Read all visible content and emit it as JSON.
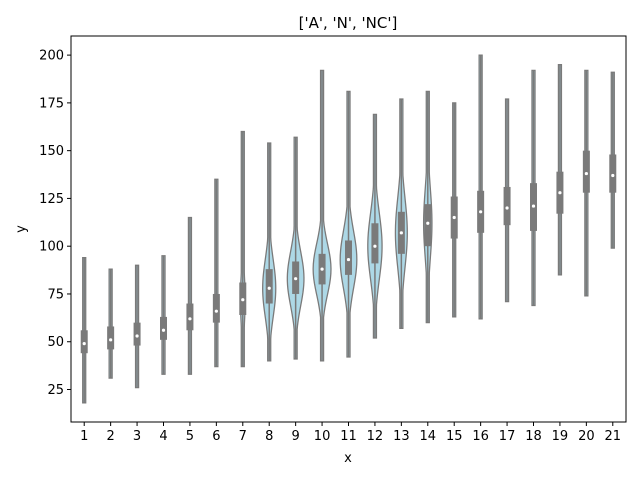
{
  "chart_data": {
    "type": "violin",
    "title": "['A', 'N', 'NC']",
    "xlabel": "x",
    "ylabel": "y",
    "ylim": [
      8,
      210
    ],
    "yticks": [
      25,
      50,
      75,
      100,
      125,
      150,
      175,
      200
    ],
    "grid": false,
    "colors": {
      "violin_fill": "#add8e6",
      "violin_edge": "#7a7a7a",
      "box": "#7a7a7a",
      "median": "#ffffff"
    },
    "categories": [
      "1",
      "2",
      "3",
      "4",
      "5",
      "6",
      "7",
      "8",
      "9",
      "10",
      "11",
      "12",
      "13",
      "14",
      "15",
      "16",
      "17",
      "18",
      "19",
      "20",
      "21"
    ],
    "violins": [
      {
        "x": "1",
        "min": 18,
        "q1": 44,
        "median": 49,
        "q3": 56,
        "max": 94,
        "width": 0.02
      },
      {
        "x": "2",
        "min": 31,
        "q1": 46,
        "median": 51,
        "q3": 58,
        "max": 88,
        "width": 0.02
      },
      {
        "x": "3",
        "min": 26,
        "q1": 48,
        "median": 53,
        "q3": 60,
        "max": 90,
        "width": 0.02
      },
      {
        "x": "4",
        "min": 33,
        "q1": 51,
        "median": 56,
        "q3": 63,
        "max": 95,
        "width": 0.02
      },
      {
        "x": "5",
        "min": 33,
        "q1": 56,
        "median": 62,
        "q3": 70,
        "max": 115,
        "width": 0.02
      },
      {
        "x": "6",
        "min": 37,
        "q1": 60,
        "median": 66,
        "q3": 75,
        "max": 135,
        "width": 0.03
      },
      {
        "x": "7",
        "min": 37,
        "q1": 64,
        "median": 72,
        "q3": 81,
        "max": 160,
        "width": 0.2
      },
      {
        "x": "8",
        "min": 40,
        "q1": 70,
        "median": 78,
        "q3": 88,
        "max": 154,
        "width": 0.55
      },
      {
        "x": "9",
        "min": 41,
        "q1": 75,
        "median": 83,
        "q3": 92,
        "max": 157,
        "width": 0.7
      },
      {
        "x": "10",
        "min": 40,
        "q1": 80,
        "median": 88,
        "q3": 96,
        "max": 192,
        "width": 0.75
      },
      {
        "x": "11",
        "min": 42,
        "q1": 85,
        "median": 93,
        "q3": 103,
        "max": 181,
        "width": 0.7
      },
      {
        "x": "12",
        "min": 52,
        "q1": 91,
        "median": 100,
        "q3": 112,
        "max": 169,
        "width": 0.6
      },
      {
        "x": "13",
        "min": 57,
        "q1": 96,
        "median": 107,
        "q3": 118,
        "max": 177,
        "width": 0.5
      },
      {
        "x": "14",
        "min": 60,
        "q1": 100,
        "median": 112,
        "q3": 122,
        "max": 181,
        "width": 0.35
      },
      {
        "x": "15",
        "min": 63,
        "q1": 104,
        "median": 115,
        "q3": 126,
        "max": 175,
        "width": 0.12
      },
      {
        "x": "16",
        "min": 62,
        "q1": 107,
        "median": 118,
        "q3": 129,
        "max": 200,
        "width": 0.05
      },
      {
        "x": "17",
        "min": 71,
        "q1": 111,
        "median": 120,
        "q3": 131,
        "max": 177,
        "width": 0.05
      },
      {
        "x": "18",
        "min": 69,
        "q1": 108,
        "median": 121,
        "q3": 133,
        "max": 192,
        "width": 0.04
      },
      {
        "x": "19",
        "min": 85,
        "q1": 117,
        "median": 128,
        "q3": 139,
        "max": 195,
        "width": 0.04
      },
      {
        "x": "20",
        "min": 74,
        "q1": 128,
        "median": 138,
        "q3": 150,
        "max": 192,
        "width": 0.04
      },
      {
        "x": "21",
        "min": 99,
        "q1": 128,
        "median": 137,
        "q3": 148,
        "max": 191,
        "width": 0.04
      }
    ]
  }
}
